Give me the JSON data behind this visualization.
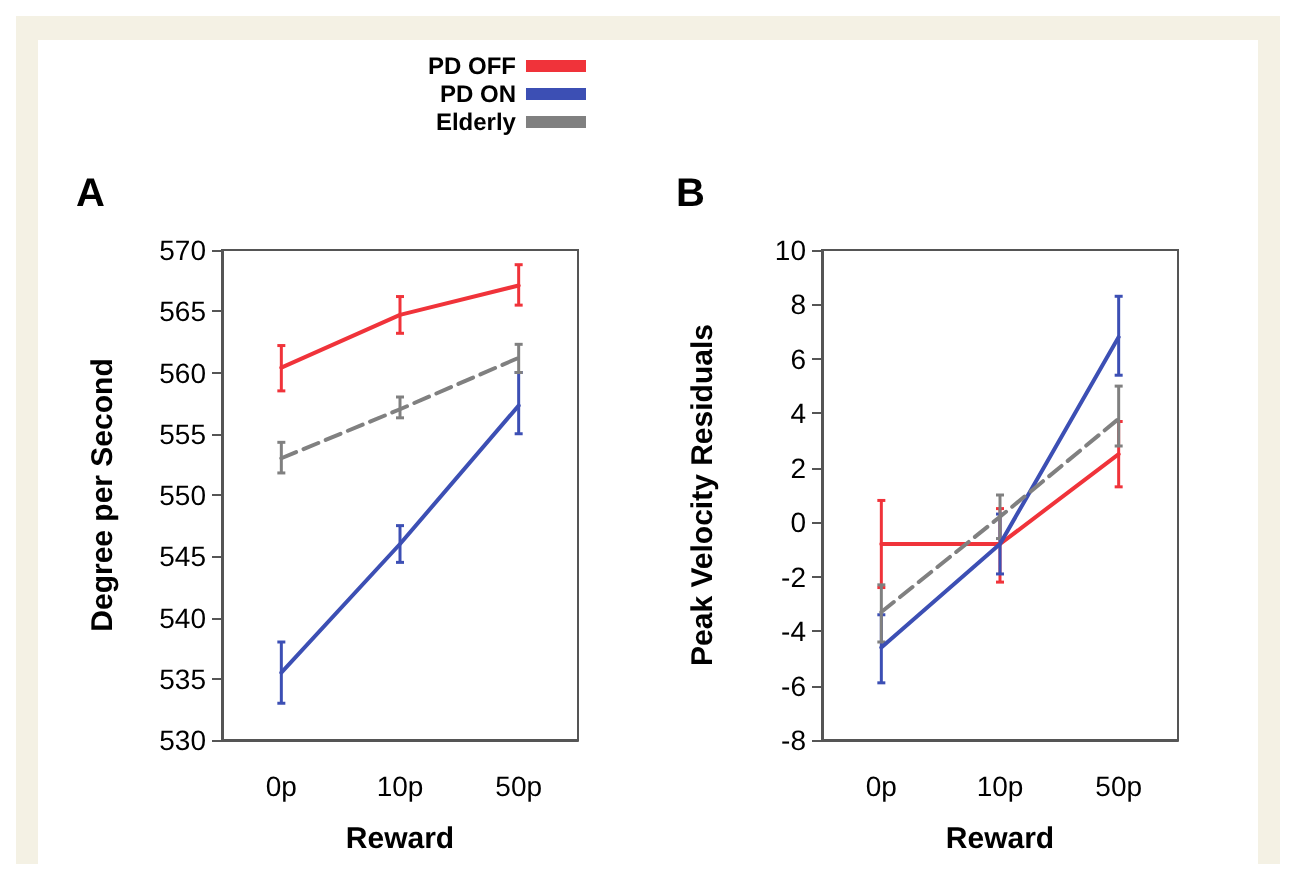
{
  "chart_data": [
    {
      "type": "line",
      "title": "A",
      "xlabel": "Reward",
      "ylabel": "Degree per Second",
      "categories": [
        "0p",
        "10p",
        "50p"
      ],
      "legend": "top",
      "grid": false,
      "marker": "none",
      "ylim": [
        530,
        570
      ],
      "yticks": [
        530,
        535,
        540,
        545,
        550,
        555,
        560,
        565,
        570
      ],
      "series": [
        {
          "name": "PD OFF",
          "color": "#f0333a",
          "values": [
            560.4,
            564.7,
            567.1
          ],
          "errors": [
            [
              558.5,
              562.2
            ],
            [
              563.2,
              566.2
            ],
            [
              565.5,
              568.8
            ]
          ],
          "line_style": "solid"
        },
        {
          "name": "PD ON",
          "color": "#3c4fb4",
          "values": [
            535.5,
            546,
            557.3
          ],
          "errors": [
            [
              533,
              538
            ],
            [
              544.5,
              547.5
            ],
            [
              555,
              560
            ]
          ],
          "line_style": "solid"
        },
        {
          "name": "Elderly",
          "color": "#808080",
          "values": [
            553,
            557,
            561.2
          ],
          "errors": [
            [
              551.8,
              554.3
            ],
            [
              556.3,
              558
            ],
            [
              560,
              562.3
            ]
          ],
          "line_style": "dashed"
        }
      ]
    },
    {
      "type": "line",
      "title": "B",
      "xlabel": "Reward",
      "ylabel": "Peak Velocity Residuals",
      "categories": [
        "0p",
        "10p",
        "50p"
      ],
      "legend": false,
      "grid": false,
      "marker": "none",
      "ylim": [
        -8,
        10
      ],
      "yticks": [
        -8,
        -6,
        -4,
        -2,
        0,
        2,
        4,
        6,
        8,
        10
      ],
      "series": [
        {
          "color": "#f0333a",
          "values": [
            -0.8,
            -0.8,
            2.5
          ],
          "errors": [
            [
              -2.4,
              0.8
            ],
            [
              -2.2,
              0.5
            ],
            [
              1.3,
              3.7
            ]
          ],
          "line_style": "solid"
        },
        {
          "color": "#3c4fb4",
          "values": [
            -4.6,
            -0.8,
            6.8
          ],
          "errors": [
            [
              -5.9,
              -3.4
            ],
            [
              -1.9,
              0.3
            ],
            [
              5.4,
              8.3
            ]
          ],
          "line_style": "solid"
        },
        {
          "color": "#808080",
          "values": [
            -3.3,
            0.2,
            3.8
          ],
          "errors": [
            [
              -4.4,
              -2.3
            ],
            [
              -0.6,
              1.0
            ],
            [
              2.8,
              5.0
            ]
          ],
          "line_style": "dashed"
        }
      ]
    }
  ]
}
